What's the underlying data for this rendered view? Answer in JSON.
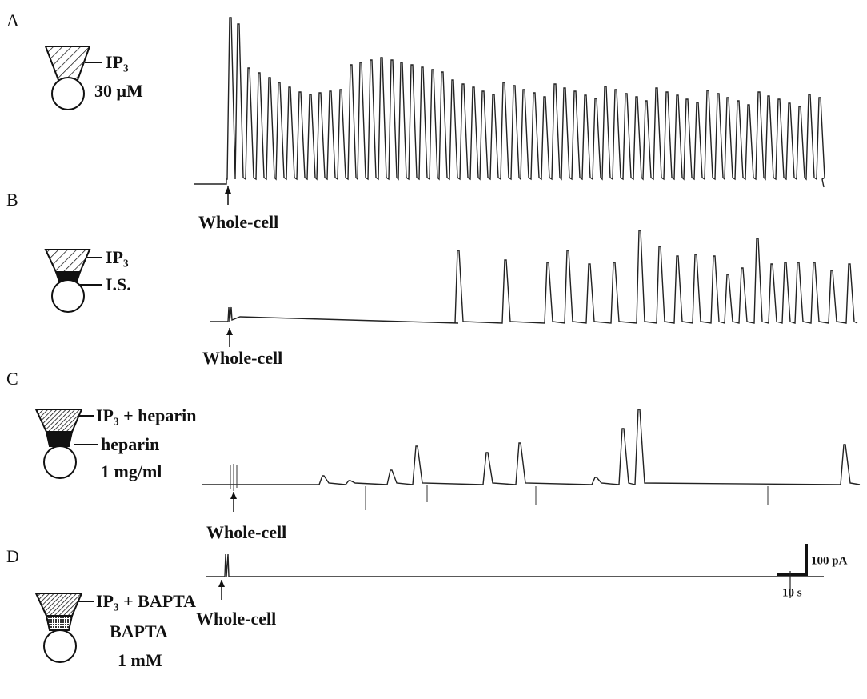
{
  "panels": [
    {
      "letter": "A",
      "labels": [
        "IP₃",
        "30 μM"
      ],
      "marker": "Whole-cell"
    },
    {
      "letter": "B",
      "labels": [
        "IP₃",
        "I.S."
      ],
      "marker": "Whole-cell"
    },
    {
      "letter": "C",
      "labels": [
        "IP₃ + heparin",
        "heparin",
        "1 mg/ml"
      ],
      "marker": "Whole-cell"
    },
    {
      "letter": "D",
      "labels": [
        "IP₃ + BAPTA",
        "BAPTA",
        "1 mM"
      ],
      "marker": "Whole-cell"
    }
  ],
  "scale_bar": {
    "y_label": "100 pA",
    "x_label": "10 s"
  }
}
